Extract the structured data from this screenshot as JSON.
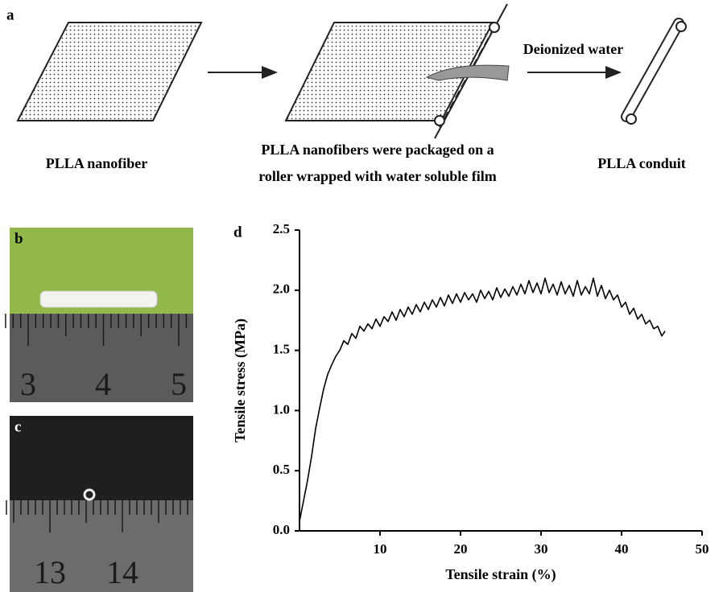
{
  "panels": {
    "a": {
      "label": "a",
      "caption_left": "PLLA nanofiber",
      "caption_middle": [
        "PLLA nanofibers were packaged on a",
        "roller wrapped with water soluble film"
      ],
      "arrow_label": "Deionized water",
      "caption_right": "PLLA conduit"
    },
    "b": {
      "label": "b",
      "ruler_numbers": [
        "3",
        "4",
        "5"
      ]
    },
    "c": {
      "label": "c",
      "ruler_numbers": [
        "13",
        "14"
      ]
    },
    "d": {
      "label": "d"
    }
  },
  "chart_data": {
    "type": "line",
    "x_label": "Tensile strain (%)",
    "y_label": "Tensile stress (MPa)",
    "xlim": [
      0,
      50
    ],
    "xticks": [
      10,
      20,
      30,
      40,
      50
    ],
    "ylim": [
      0,
      2.5
    ],
    "yticks": [
      {
        "value": 0,
        "label": "0.0"
      },
      0.5,
      {
        "value": 1,
        "label": "1.0"
      },
      1.5,
      {
        "value": 2,
        "label": "2.0"
      },
      2.5
    ],
    "grid": false,
    "x": [
      0,
      0.5,
      1,
      1.5,
      2,
      2.5,
      3,
      3.5,
      4,
      4.5,
      5,
      5.5,
      6,
      6.5,
      7,
      7.5,
      8,
      8.5,
      9,
      9.5,
      10,
      10.5,
      11,
      11.5,
      12,
      12.5,
      13,
      13.5,
      14,
      14.5,
      15,
      15.5,
      16,
      16.5,
      17,
      17.5,
      18,
      18.5,
      19,
      19.5,
      20,
      20.5,
      21,
      21.5,
      22,
      22.5,
      23,
      23.5,
      24,
      24.5,
      25,
      25.5,
      26,
      26.5,
      27,
      27.5,
      28,
      28.5,
      29,
      29.5,
      30,
      30.5,
      31,
      31.5,
      32,
      32.5,
      33,
      33.5,
      34,
      34.5,
      35,
      35.5,
      36,
      36.5,
      37,
      37.5,
      38,
      38.5,
      39,
      39.5,
      40,
      40.5,
      41,
      41.5,
      42,
      42.5,
      43,
      43.5,
      44,
      44.5,
      45,
      45.4
    ],
    "series": [
      {
        "color": "#000000",
        "values": [
          0.08,
          0.25,
          0.42,
          0.62,
          0.85,
          1.02,
          1.18,
          1.3,
          1.38,
          1.45,
          1.5,
          1.58,
          1.55,
          1.64,
          1.6,
          1.7,
          1.66,
          1.72,
          1.68,
          1.76,
          1.7,
          1.78,
          1.74,
          1.82,
          1.75,
          1.84,
          1.78,
          1.86,
          1.8,
          1.88,
          1.82,
          1.9,
          1.84,
          1.92,
          1.86,
          1.94,
          1.87,
          1.96,
          1.89,
          1.97,
          1.9,
          1.98,
          1.92,
          1.97,
          1.9,
          2.0,
          1.93,
          1.99,
          1.92,
          2.02,
          1.94,
          2.01,
          1.95,
          2.03,
          1.96,
          2.05,
          1.97,
          2.08,
          1.98,
          2.06,
          1.97,
          2.1,
          1.98,
          2.05,
          1.96,
          2.07,
          1.97,
          2.04,
          1.95,
          2.08,
          1.96,
          2.03,
          1.97,
          2.1,
          1.95,
          2.04,
          1.93,
          2.0,
          1.92,
          1.96,
          1.86,
          1.9,
          1.8,
          1.85,
          1.76,
          1.8,
          1.72,
          1.75,
          1.68,
          1.7,
          1.62,
          1.66
        ]
      }
    ]
  }
}
